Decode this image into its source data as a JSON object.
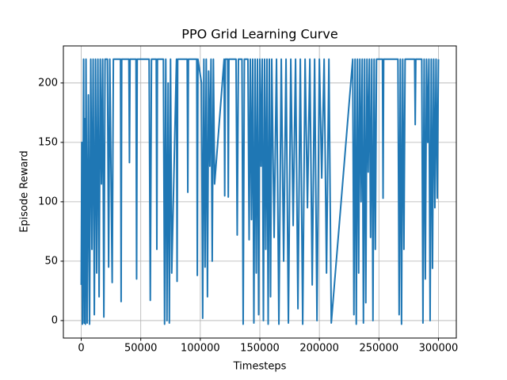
{
  "chart_data": {
    "type": "line",
    "title": "PPO Grid Learning Curve",
    "x_label": "Timesteps",
    "y_label": "Episode Reward",
    "color": "#1f77b4",
    "grid": true,
    "xlim": [
      -15000,
      315000
    ],
    "ylim": [
      -14.7,
      231.2
    ],
    "xticks": [
      0,
      50000,
      100000,
      150000,
      200000,
      250000,
      300000
    ],
    "yticks": [
      0,
      50,
      100,
      150,
      200
    ],
    "x": [
      0,
      500,
      1000,
      1500,
      2000,
      2500,
      3000,
      3500,
      4000,
      5000,
      6000,
      7000,
      8000,
      9000,
      10000,
      11000,
      12000,
      13000,
      14000,
      15000,
      16000,
      17000,
      18000,
      19000,
      20000,
      22000,
      23000,
      24000,
      26000,
      27000,
      33000,
      33500,
      34000,
      40000,
      40500,
      41000,
      46000,
      46500,
      47000,
      57000,
      58000,
      59000,
      63000,
      63500,
      64000,
      69000,
      70000,
      71000,
      72000,
      73000,
      74000,
      75000,
      76000,
      80000,
      80500,
      81000,
      89000,
      89500,
      90000,
      97000,
      97500,
      98000,
      101000,
      102000,
      103000,
      104000,
      105000,
      106000,
      107000,
      108000,
      109000,
      110000,
      111000,
      112000,
      120000,
      120500,
      121000,
      123000,
      123500,
      124000,
      130000,
      131000,
      132000,
      135000,
      136000,
      137000,
      140000,
      141000,
      142000,
      143000,
      144000,
      145000,
      146000,
      147000,
      148000,
      149000,
      150000,
      151000,
      152000,
      153000,
      154000,
      155000,
      156000,
      157000,
      158000,
      159000,
      160000,
      162000,
      164000,
      166000,
      168000,
      170000,
      172000,
      174000,
      176000,
      178000,
      180000,
      182000,
      184000,
      186000,
      188000,
      190000,
      192000,
      194000,
      196000,
      198000,
      200000,
      202000,
      204000,
      206000,
      208000,
      210000,
      228000,
      229000,
      230000,
      231000,
      232000,
      233000,
      234000,
      235000,
      236000,
      237000,
      238000,
      239000,
      240000,
      241000,
      242000,
      243000,
      244000,
      245000,
      246000,
      247000,
      248000,
      253000,
      253500,
      254000,
      266000,
      267000,
      268000,
      269000,
      270000,
      271000,
      272000,
      275000,
      276000,
      280000,
      280500,
      281000,
      286000,
      287000,
      288000,
      289000,
      290000,
      291000,
      292000,
      293000,
      294000,
      295000,
      296000,
      297000,
      298000,
      299000,
      300000
    ],
    "values": [
      30,
      150,
      -3,
      106,
      220,
      -2,
      170,
      -3,
      220,
      -2,
      190,
      -3,
      220,
      60,
      220,
      5,
      220,
      40,
      220,
      20,
      220,
      115,
      220,
      3,
      220,
      220,
      45,
      220,
      32,
      220,
      220,
      16,
      220,
      220,
      133,
      220,
      220,
      35,
      220,
      220,
      17,
      220,
      220,
      60,
      220,
      220,
      -3,
      220,
      0,
      200,
      -2,
      220,
      40,
      220,
      33,
      220,
      220,
      108,
      220,
      220,
      38,
      220,
      200,
      2,
      220,
      45,
      220,
      20,
      210,
      130,
      220,
      50,
      220,
      115,
      220,
      105,
      220,
      220,
      104,
      220,
      220,
      72,
      220,
      220,
      -3,
      220,
      220,
      68,
      220,
      85,
      220,
      -2,
      220,
      40,
      220,
      5,
      220,
      130,
      220,
      0,
      220,
      60,
      220,
      -3,
      220,
      20,
      220,
      70,
      220,
      -3,
      220,
      50,
      220,
      -2,
      220,
      80,
      220,
      10,
      220,
      -3,
      220,
      95,
      220,
      30,
      220,
      0,
      220,
      120,
      220,
      40,
      220,
      -2,
      220,
      5,
      220,
      -3,
      220,
      40,
      220,
      100,
      220,
      -2,
      220,
      15,
      220,
      125,
      220,
      70,
      220,
      0,
      220,
      60,
      220,
      220,
      103,
      220,
      220,
      5,
      220,
      -3,
      220,
      60,
      220,
      220,
      220,
      220,
      165,
      220,
      220,
      -2,
      220,
      35,
      220,
      150,
      220,
      0,
      220,
      44,
      220,
      95,
      220,
      103,
      220
    ]
  }
}
